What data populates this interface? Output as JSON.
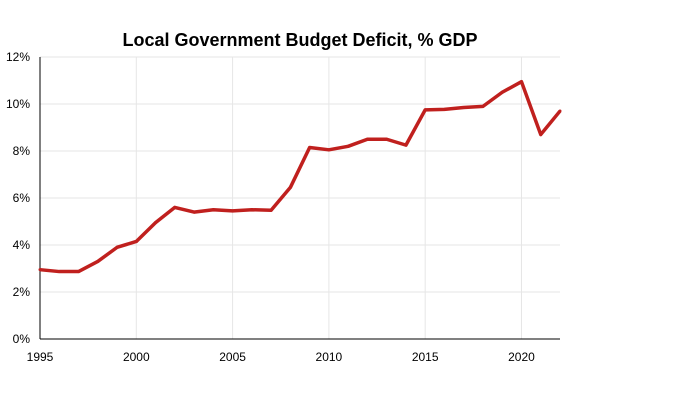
{
  "chart_data": {
    "type": "line",
    "title": "Local Government Budget Deficit, % GDP",
    "xlabel": "",
    "ylabel": "",
    "x": [
      1995,
      1996,
      1997,
      1998,
      1999,
      2000,
      2001,
      2002,
      2003,
      2004,
      2005,
      2006,
      2007,
      2008,
      2009,
      2010,
      2011,
      2012,
      2013,
      2014,
      2015,
      2016,
      2017,
      2018,
      2019,
      2020,
      2021,
      2022
    ],
    "series": [
      {
        "values": [
          2.95,
          2.87,
          2.87,
          3.3,
          3.9,
          4.15,
          4.95,
          5.6,
          5.4,
          5.5,
          5.45,
          5.5,
          5.48,
          6.45,
          8.15,
          8.05,
          8.2,
          8.5,
          8.5,
          8.25,
          9.75,
          9.77,
          9.85,
          9.9,
          10.5,
          10.95,
          8.7,
          9.7
        ]
      }
    ],
    "xlim": [
      1995,
      2022
    ],
    "ylim": [
      0,
      12
    ],
    "x_ticks": [
      "1995",
      "2000",
      "2005",
      "2010",
      "2015",
      "2020"
    ],
    "y_ticks": [
      "0%",
      "2%",
      "4%",
      "6%",
      "8%",
      "10%",
      "12%"
    ],
    "grid": true,
    "legend": "none",
    "colors": {
      "line": "#c0201e",
      "grid": "#e6e6e6",
      "axis": "#000000"
    }
  }
}
